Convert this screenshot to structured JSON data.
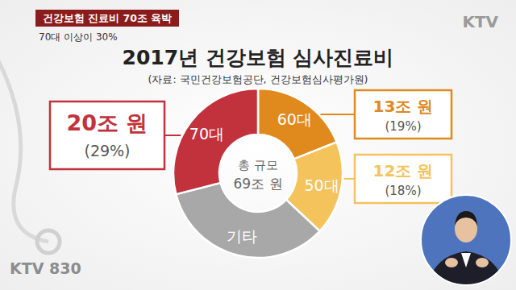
{
  "chart_data": {
    "type": "pie",
    "title": "2017년 건강보험 심사진료비",
    "subtitle": "(자료: 국민건강보험공단, 건강보험심사평가원)",
    "categories": [
      "60대",
      "50대",
      "기타",
      "70대"
    ],
    "values": [
      19,
      18,
      34,
      29
    ],
    "value_labels": [
      "(19%)",
      "(18%)",
      null,
      "(29%)"
    ],
    "amount_labels": [
      "13조 원",
      "12조 원",
      null,
      "20조 원"
    ],
    "colors": [
      "#e08a1e",
      "#f4c35c",
      "#a8a8a8",
      "#c1323c"
    ],
    "data_labels": true,
    "center_label": "총 규모",
    "center_value": "69조 원",
    "annotations": [
      "건강보험 진료비 70조 육박",
      "70대 이상이 30%",
      "KTV",
      "KTV 830"
    ]
  }
}
